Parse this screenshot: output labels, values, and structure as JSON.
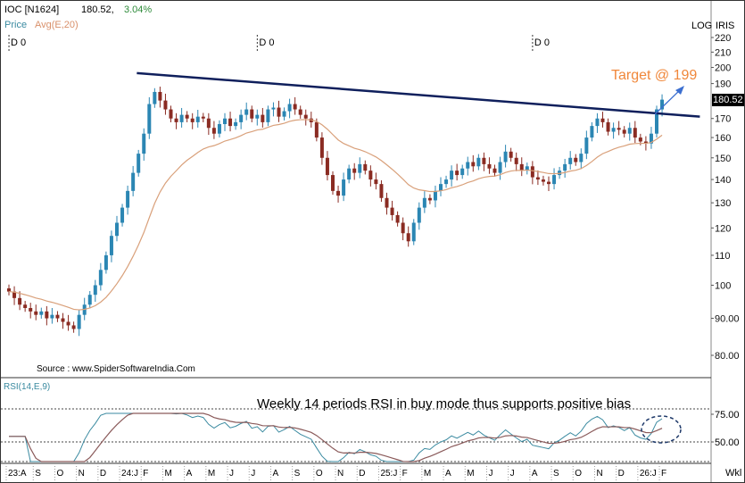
{
  "header": {
    "symbol": "IOC [N1624]",
    "price": "180.52,",
    "change": "3.04%",
    "price_label": "Price",
    "avg_label": "Avg(E,20)"
  },
  "axis_labels": {
    "log": "LOG",
    "iris": "IRIS",
    "period": "Wkl"
  },
  "source": "Source : www.SpiderSoftwareIndia.Com",
  "dividend_marker": "D 0",
  "rsi_label": "RSI(14,E,9)",
  "rsi_annotation": "Weekly 14 periods RSI in buy mode thus supports positive bias",
  "target_annotation": "Target @ 199",
  "last_price_tag": "180.52",
  "colors": {
    "up": "#2b86b3",
    "down": "#8a2b22",
    "ema": "#d9a07a",
    "trendline": "#0f1f5c",
    "target": "#f0873a",
    "rsi": "#3a8aa0",
    "rsi_signal": "#8a5a5a"
  },
  "chart_data": {
    "type": "candlestick",
    "title": "IOC [N1624] Weekly",
    "ylabel": "Price (log)",
    "ylim": [
      78,
      224
    ],
    "yticks": [
      "220",
      "210",
      "200",
      "190",
      "170",
      "160",
      "150",
      "140",
      "130",
      "120",
      "110",
      "100",
      "90.00",
      "80.00"
    ],
    "months": [
      "23:A",
      "S",
      "O",
      "N",
      "D",
      "24:J",
      "F",
      "M",
      "A",
      "M",
      "J",
      "J",
      "A",
      "S",
      "O",
      "N",
      "D",
      "25:J",
      "F",
      "M",
      "A",
      "M",
      "J",
      "J",
      "A",
      "S",
      "O",
      "N",
      "D",
      "26:J",
      "F"
    ],
    "weeks_per_month": [
      5,
      4,
      4,
      4,
      4,
      4,
      4,
      4,
      4,
      4,
      4,
      4,
      4,
      4,
      4,
      4,
      4,
      4,
      4,
      4,
      4,
      4,
      4,
      4,
      4,
      4,
      4,
      4,
      4,
      4,
      1
    ],
    "closes": [
      98,
      96,
      94,
      93,
      92,
      91,
      92,
      90,
      91,
      90,
      89,
      88,
      87,
      91,
      94,
      97,
      100,
      105,
      110,
      117,
      122,
      128,
      135,
      143,
      152,
      162,
      178,
      185,
      180,
      175,
      170,
      168,
      172,
      170,
      168,
      171,
      170,
      165,
      162,
      167,
      170,
      166,
      168,
      172,
      175,
      170,
      172,
      168,
      175,
      176,
      171,
      174,
      178,
      175,
      172,
      170,
      168,
      160,
      150,
      142,
      135,
      133,
      140,
      145,
      143,
      147,
      144,
      140,
      138,
      132,
      128,
      125,
      122,
      118,
      115,
      122,
      128,
      132,
      131,
      135,
      138,
      140,
      144,
      142,
      145,
      148,
      146,
      150,
      147,
      145,
      143,
      148,
      153,
      150,
      147,
      144,
      146,
      141,
      140,
      139,
      138,
      142,
      144,
      147,
      150,
      148,
      152,
      160,
      166,
      170,
      168,
      163,
      165,
      164,
      162,
      165,
      160,
      158,
      157,
      162,
      175,
      180.52
    ],
    "ema_period": 20,
    "trendline": {
      "from": {
        "week": 27,
        "price": 197
      },
      "to": {
        "week": 128,
        "price": 171
      }
    },
    "dividend_weeks": [
      1,
      47,
      98
    ],
    "rsi": {
      "period": 14,
      "signal": 9,
      "levels": [
        75,
        50
      ],
      "yticks": [
        "75.00",
        "50.00"
      ],
      "ylim": [
        30,
        106
      ]
    }
  }
}
